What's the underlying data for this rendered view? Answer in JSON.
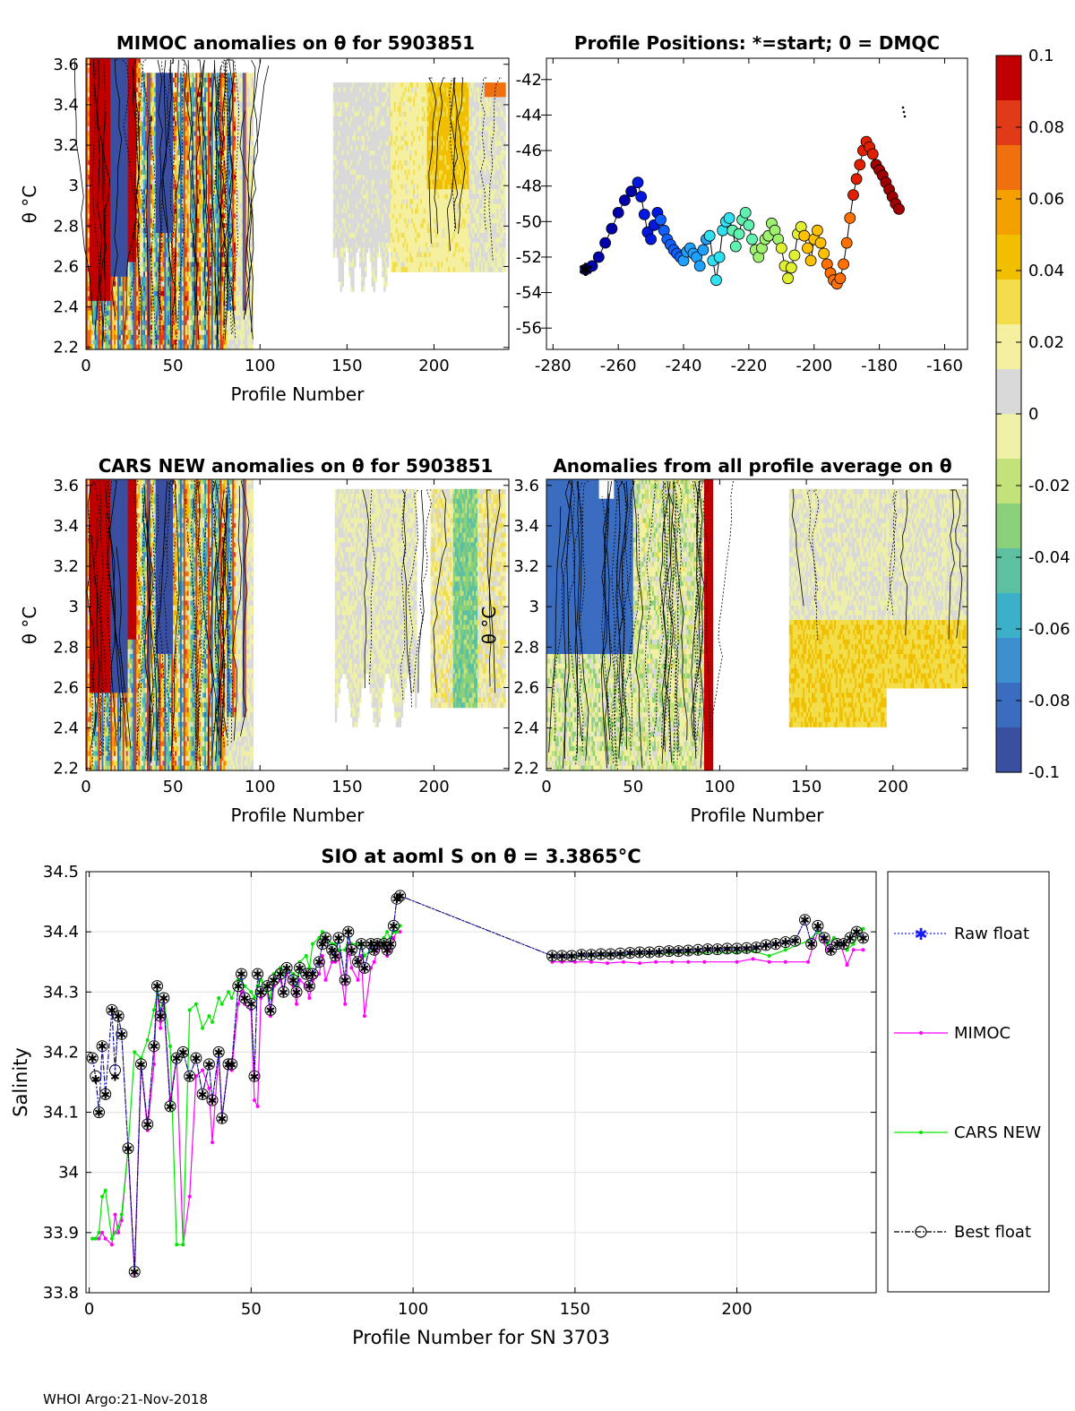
{
  "colors": {
    "raw": "#1a1aff",
    "mimoc": "#ff00ff",
    "cars": "#00e600",
    "best": "#000000",
    "colormap": [
      "#3b4fa0",
      "#3a6cc0",
      "#3d8fd0",
      "#3cb0c8",
      "#5dc0a0",
      "#8ad07a",
      "#c4e27a",
      "#eef0a8",
      "#d9d9d9",
      "#f4f0a0",
      "#f2dd4a",
      "#f0c000",
      "#f4a000",
      "#f07010",
      "#e03a18",
      "#c00000"
    ]
  },
  "panels": {
    "mimoc": {
      "title": "MIMOC anomalies on θ  for 5903851",
      "ylabel": "θ °C",
      "xlabel": "Profile Number",
      "xticks": [
        "0",
        "50",
        "100",
        "150",
        "200"
      ],
      "yticks": [
        "2.2",
        "2.4",
        "2.6",
        "2.8",
        "3",
        "3.2",
        "3.4",
        "3.6"
      ]
    },
    "positions": {
      "title": "Profile Positions: *=start; 0 = DMQC",
      "xticks": [
        "-280",
        "-260",
        "-240",
        "-220",
        "-200",
        "-180",
        "-160"
      ],
      "yticks": [
        "-42",
        "-44",
        "-46",
        "-48",
        "-50",
        "-52",
        "-54",
        "-56"
      ]
    },
    "cars": {
      "title": "CARS NEW anomalies on θ for 5903851",
      "ylabel": "θ °C",
      "xlabel": "Profile Number",
      "xticks": [
        "0",
        "50",
        "100",
        "150",
        "200"
      ],
      "yticks": [
        "2.2",
        "2.4",
        "2.6",
        "2.8",
        "3",
        "3.2",
        "3.4",
        "3.6"
      ]
    },
    "average": {
      "title": "Anomalies from all profile average on θ",
      "ylabel": "θ °C",
      "xlabel": "Profile Number",
      "xticks": [
        "0",
        "50",
        "100",
        "150",
        "200"
      ],
      "yticks": [
        "2.2",
        "2.4",
        "2.6",
        "2.8",
        "3",
        "3.2",
        "3.4",
        "3.6"
      ]
    },
    "colorbar": {
      "ticks": [
        "0.1",
        "0.08",
        "0.06",
        "0.04",
        "0.02",
        "0",
        "-0.02",
        "-0.04",
        "-0.06",
        "-0.08",
        "-0.1"
      ]
    }
  },
  "chart_data": {
    "type": "line",
    "title": "SIO at aoml S on θ = 3.3865°C",
    "xlabel": "Profile Number for SN 3703",
    "ylabel": "Salinity",
    "xlim": [
      -1,
      243
    ],
    "ylim": [
      33.8,
      34.5
    ],
    "xticks": [
      "0",
      "50",
      "100",
      "150",
      "200"
    ],
    "yticks": [
      "33.8",
      "33.9",
      "34",
      "34.1",
      "34.2",
      "34.3",
      "34.4",
      "34.5"
    ],
    "legend": [
      "Raw float",
      "MIMOC",
      "CARS NEW",
      "Best float"
    ],
    "series": [
      {
        "name": "Best float",
        "x": [
          1,
          2,
          3,
          4,
          5,
          7,
          8,
          9,
          10,
          12,
          14,
          16,
          18,
          20,
          21,
          22,
          23,
          25,
          27,
          29,
          31,
          33,
          35,
          37,
          38,
          40,
          41,
          43,
          44,
          46,
          47,
          48,
          50,
          51,
          52,
          53,
          55,
          56,
          57,
          59,
          60,
          61,
          63,
          64,
          65,
          67,
          68,
          69,
          71,
          72,
          73,
          75,
          76,
          77,
          79,
          80,
          81,
          83,
          84,
          85,
          87,
          88,
          89,
          91,
          92,
          93,
          94,
          95,
          96,
          143,
          146,
          149,
          152,
          155,
          158,
          161,
          164,
          167,
          170,
          173,
          176,
          179,
          182,
          185,
          188,
          191,
          194,
          197,
          200,
          203,
          206,
          209,
          212,
          215,
          218,
          221,
          223,
          225,
          227,
          229,
          231,
          233,
          235,
          237,
          239
        ],
        "y": [
          34.19,
          34.16,
          34.1,
          34.21,
          34.13,
          34.27,
          34.17,
          34.26,
          34.23,
          34.04,
          33.835,
          34.18,
          34.08,
          34.21,
          34.31,
          34.26,
          34.29,
          34.11,
          34.19,
          34.2,
          34.16,
          34.19,
          34.13,
          34.18,
          34.12,
          34.2,
          34.09,
          34.18,
          34.18,
          34.31,
          34.33,
          34.29,
          34.28,
          34.16,
          34.33,
          34.3,
          34.31,
          34.27,
          34.32,
          34.33,
          34.3,
          34.34,
          34.32,
          34.3,
          34.34,
          34.33,
          34.31,
          34.33,
          34.35,
          34.38,
          34.39,
          34.37,
          34.36,
          34.39,
          34.32,
          34.4,
          34.37,
          34.35,
          34.38,
          34.34,
          34.38,
          34.37,
          34.38,
          34.38,
          34.37,
          34.38,
          34.41,
          34.455,
          34.46,
          34.36,
          34.36,
          34.36,
          34.362,
          34.362,
          34.363,
          34.363,
          34.364,
          34.365,
          34.366,
          34.366,
          34.367,
          34.368,
          34.368,
          34.369,
          34.37,
          34.371,
          34.371,
          34.372,
          34.372,
          34.373,
          34.374,
          34.378,
          34.38,
          34.383,
          34.385,
          34.42,
          34.38,
          34.41,
          34.39,
          34.37,
          34.38,
          34.38,
          34.39,
          34.4,
          34.39
        ]
      },
      {
        "name": "MIMOC",
        "x": [
          1,
          2,
          3,
          4,
          5,
          7,
          8,
          9,
          10,
          12,
          14,
          16,
          18,
          20,
          21,
          22,
          23,
          25,
          27,
          29,
          31,
          33,
          35,
          37,
          38,
          40,
          41,
          43,
          44,
          46,
          47,
          48,
          50,
          51,
          52,
          53,
          55,
          56,
          57,
          59,
          60,
          61,
          63,
          64,
          65,
          67,
          68,
          69,
          71,
          72,
          73,
          75,
          76,
          77,
          79,
          80,
          81,
          83,
          84,
          85,
          87,
          88,
          89,
          91,
          92,
          93,
          94,
          95,
          96,
          143,
          146,
          150,
          155,
          160,
          165,
          170,
          175,
          180,
          185,
          190,
          200,
          205,
          210,
          215,
          222,
          225,
          228,
          230,
          232,
          234,
          236,
          239
        ],
        "y": [
          33.89,
          33.89,
          33.89,
          33.9,
          33.89,
          33.88,
          33.93,
          33.9,
          33.92,
          34.04,
          33.83,
          34.18,
          34.07,
          34.18,
          34.31,
          34.24,
          34.28,
          34.12,
          34.19,
          33.88,
          33.96,
          34.16,
          34.17,
          34.14,
          34.05,
          34.2,
          34.09,
          34.18,
          34.17,
          34.28,
          34.3,
          34.28,
          34.27,
          34.12,
          34.11,
          34.29,
          34.3,
          34.26,
          34.31,
          34.32,
          34.3,
          34.33,
          34.31,
          34.28,
          34.32,
          34.31,
          34.29,
          34.32,
          34.33,
          34.36,
          34.32,
          34.35,
          34.35,
          34.36,
          34.28,
          34.38,
          34.34,
          34.32,
          34.36,
          34.26,
          34.34,
          34.35,
          34.37,
          34.38,
          34.36,
          34.37,
          34.39,
          34.4,
          34.4,
          34.35,
          34.35,
          34.35,
          34.35,
          34.348,
          34.35,
          34.348,
          34.35,
          34.35,
          34.35,
          34.35,
          34.35,
          34.355,
          34.35,
          34.35,
          34.35,
          34.4,
          34.37,
          34.39,
          34.38,
          34.345,
          34.37,
          34.37
        ]
      },
      {
        "name": "CARS NEW",
        "x": [
          1,
          2,
          3,
          4,
          5,
          7,
          8,
          9,
          10,
          12,
          14,
          16,
          18,
          20,
          21,
          22,
          23,
          25,
          27,
          29,
          31,
          33,
          35,
          37,
          38,
          40,
          41,
          43,
          44,
          46,
          47,
          48,
          50,
          51,
          52,
          53,
          55,
          56,
          57,
          59,
          60,
          61,
          63,
          64,
          65,
          67,
          68,
          69,
          71,
          72,
          73,
          75,
          76,
          77,
          79,
          80,
          81,
          83,
          84,
          85,
          87,
          88,
          89,
          91,
          92,
          93,
          94,
          95,
          96,
          143,
          146,
          150,
          155,
          160,
          165,
          170,
          175,
          180,
          185,
          190,
          200,
          205,
          210,
          215,
          222,
          225,
          228,
          230,
          232,
          234,
          236,
          239
        ],
        "y": [
          33.89,
          33.89,
          33.9,
          33.96,
          33.97,
          33.89,
          33.9,
          33.91,
          33.93,
          34.04,
          34.2,
          34.19,
          34.22,
          34.27,
          34.3,
          34.27,
          34.29,
          34.21,
          33.88,
          33.88,
          34.27,
          34.28,
          34.24,
          34.26,
          34.25,
          34.29,
          34.28,
          34.3,
          34.29,
          34.32,
          34.32,
          34.31,
          34.3,
          34.29,
          34.31,
          34.32,
          34.3,
          34.29,
          34.33,
          34.34,
          34.33,
          34.34,
          34.33,
          34.31,
          34.35,
          34.36,
          34.34,
          34.38,
          34.39,
          34.4,
          34.39,
          34.38,
          34.38,
          34.37,
          34.37,
          34.39,
          34.38,
          34.38,
          34.38,
          34.36,
          34.37,
          34.37,
          34.38,
          34.39,
          34.4,
          34.39,
          34.4,
          34.4,
          34.41,
          34.36,
          34.36,
          34.36,
          34.36,
          34.362,
          34.362,
          34.363,
          34.364,
          34.364,
          34.365,
          34.365,
          34.366,
          34.368,
          34.36,
          34.37,
          34.385,
          34.4,
          34.38,
          34.39,
          34.38,
          34.37,
          34.38,
          34.405
        ]
      },
      {
        "name": "Raw float",
        "x": [
          1,
          2,
          3,
          4,
          5,
          7,
          8,
          9,
          10,
          12,
          14,
          16,
          18,
          20,
          21,
          22,
          23,
          25,
          27,
          29,
          31,
          33,
          35,
          37,
          38,
          40,
          41,
          43,
          44,
          46,
          47,
          48,
          50,
          51,
          52,
          53,
          55,
          56,
          57,
          59,
          60,
          61,
          63,
          64,
          65,
          67,
          68,
          69,
          71,
          72,
          73,
          75,
          76,
          77,
          79,
          80,
          81,
          83,
          84,
          85,
          87,
          88,
          89,
          91,
          92,
          93,
          94,
          95,
          96,
          143,
          146,
          149,
          152,
          155,
          158,
          161,
          164,
          167,
          170,
          173,
          176,
          179,
          182,
          185,
          188,
          191,
          194,
          197,
          200,
          203,
          206,
          209,
          212,
          215,
          218,
          221,
          223,
          225,
          227,
          229,
          231,
          233,
          235,
          237,
          239
        ],
        "y": [
          34.19,
          34.155,
          34.1,
          34.21,
          34.13,
          34.27,
          34.16,
          34.26,
          34.23,
          34.04,
          33.835,
          34.18,
          34.08,
          34.21,
          34.31,
          34.26,
          34.29,
          34.11,
          34.19,
          34.2,
          34.16,
          34.19,
          34.13,
          34.18,
          34.12,
          34.2,
          34.09,
          34.18,
          34.18,
          34.31,
          34.33,
          34.29,
          34.28,
          34.16,
          34.33,
          34.3,
          34.31,
          34.27,
          34.32,
          34.33,
          34.3,
          34.34,
          34.32,
          34.3,
          34.34,
          34.33,
          34.31,
          34.33,
          34.35,
          34.38,
          34.39,
          34.37,
          34.36,
          34.39,
          34.32,
          34.4,
          34.37,
          34.35,
          34.38,
          34.34,
          34.38,
          34.37,
          34.38,
          34.38,
          34.37,
          34.38,
          34.41,
          34.455,
          34.46,
          34.36,
          34.36,
          34.36,
          34.362,
          34.362,
          34.363,
          34.363,
          34.364,
          34.365,
          34.366,
          34.366,
          34.367,
          34.368,
          34.368,
          34.369,
          34.37,
          34.371,
          34.371,
          34.372,
          34.372,
          34.373,
          34.374,
          34.378,
          34.38,
          34.383,
          34.385,
          34.42,
          34.38,
          34.41,
          34.39,
          34.37,
          34.38,
          34.38,
          34.39,
          34.4,
          34.39
        ]
      }
    ]
  },
  "track": {
    "lon": [
      -270,
      -268,
      -266,
      -264,
      -262,
      -260,
      -258,
      -256,
      -254,
      -253,
      -252,
      -251,
      -250,
      -249,
      -248,
      -247,
      -246,
      -245,
      -244,
      -243,
      -242,
      -241,
      -240,
      -239,
      -238,
      -237,
      -236,
      -235,
      -234,
      -233,
      -232,
      -231,
      -230,
      -229,
      -228,
      -227,
      -226,
      -225,
      -224,
      -223,
      -222,
      -221,
      -220,
      -219,
      -218,
      -217,
      -216,
      -215,
      -214,
      -213,
      -212,
      -211,
      -210,
      -209,
      -208,
      -207,
      -206,
      -205,
      -204,
      -203,
      -202,
      -201,
      -200,
      -199,
      -198,
      -197,
      -196,
      -195,
      -194,
      -193,
      -192,
      -191,
      -190,
      -189,
      -188,
      -187,
      -186,
      -185,
      -184,
      -183,
      -182,
      -181,
      -180,
      -179,
      -178,
      -177,
      -176,
      -175,
      -174
    ],
    "lat": [
      -52.7,
      -52.5,
      -52.0,
      -51.2,
      -50.4,
      -49.5,
      -48.8,
      -48.3,
      -47.8,
      -48.6,
      -49.6,
      -50.6,
      -51.0,
      -50.2,
      -49.5,
      -49.9,
      -50.5,
      -51.0,
      -51.3,
      -51.6,
      -51.8,
      -52.0,
      -52.2,
      -51.7,
      -51.5,
      -51.8,
      -52.0,
      -52.5,
      -51.6,
      -51.0,
      -50.8,
      -52.2,
      -53.3,
      -52.0,
      -50.5,
      -50.0,
      -49.8,
      -50.5,
      -51.4,
      -50.7,
      -49.9,
      -49.5,
      -50.2,
      -51.0,
      -51.6,
      -52.0,
      -51.5,
      -51.0,
      -50.8,
      -50.1,
      -50.5,
      -51.0,
      -51.5,
      -52.5,
      -53.2,
      -52.6,
      -51.9,
      -50.7,
      -50.3,
      -50.8,
      -51.5,
      -52.2,
      -51.0,
      -50.5,
      -51.2,
      -51.8,
      -52.4,
      -52.9,
      -53.3,
      -53.5,
      -53.2,
      -52.4,
      -51.2,
      -49.8,
      -48.5,
      -47.6,
      -46.8,
      -46.0,
      -45.5,
      -45.8,
      -46.2,
      -46.8,
      -47.1,
      -47.4,
      -47.8,
      -48.2,
      -48.6,
      -49.0,
      -49.3
    ]
  },
  "footer": "WHOI Argo:21-Nov-2018"
}
